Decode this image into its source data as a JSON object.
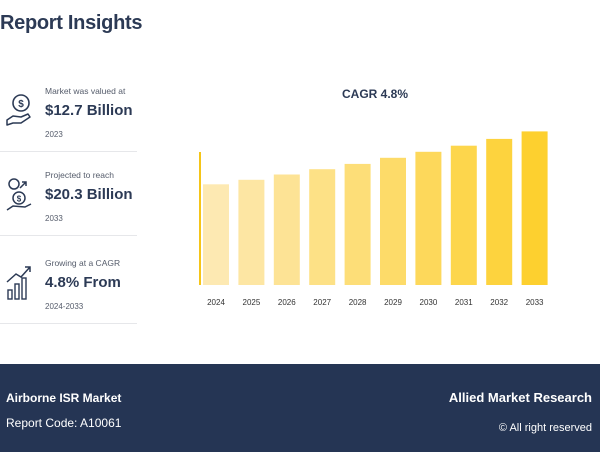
{
  "header": {
    "title": "Report Insights"
  },
  "stats": [
    {
      "label": "Market was valued at",
      "value": "$12.7 Billion",
      "year": "2023",
      "icon": "money-hand-icon"
    },
    {
      "label": "Projected to reach",
      "value": "$20.3 Billion",
      "year": "2033",
      "icon": "coins-growth-icon"
    },
    {
      "label": "Growing at a CAGR",
      "value": "4.8% From",
      "year": "2024-2033",
      "icon": "bar-growth-icon"
    }
  ],
  "chart_data": {
    "type": "bar",
    "title": "CAGR 4.8%",
    "categories": [
      "2024",
      "2025",
      "2026",
      "2027",
      "2028",
      "2029",
      "2030",
      "2031",
      "2032",
      "2033"
    ],
    "values": [
      13.3,
      13.9,
      14.6,
      15.3,
      16.0,
      16.8,
      17.6,
      18.4,
      19.3,
      20.3
    ],
    "ylim": [
      0,
      21.8
    ],
    "grid": false,
    "colors": {
      "start": "#fde9b2",
      "end": "#fdd02f",
      "axis": "#f5c518",
      "tick": "#333333"
    }
  },
  "footer": {
    "market": "Airborne ISR Market",
    "code": "Report Code: A10061",
    "brand": "Allied Market Research",
    "rights": "© All right reserved"
  }
}
